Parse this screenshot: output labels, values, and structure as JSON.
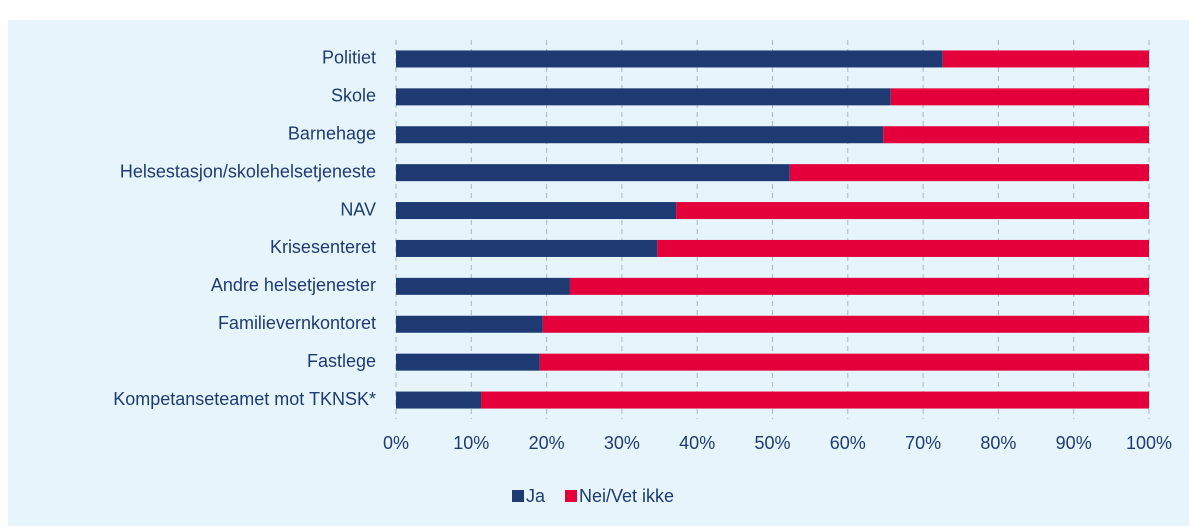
{
  "chart_data": {
    "type": "stacked-barh",
    "categories": [
      "Politiet",
      "Skole",
      "Barnehage",
      "Helsestasjon/skolehelsetjeneste",
      "NAV",
      "Krisesenteret",
      "Andre helsetjenester",
      "Familievernkontoret",
      "Fastlege",
      "Kompetanseteamet mot TKNSK*"
    ],
    "series": [
      {
        "name": "Ja",
        "color": "#1f3a73",
        "values": [
          72.6,
          65.7,
          64.7,
          52.3,
          37.2,
          34.7,
          23.1,
          19.5,
          19.1,
          11.3
        ]
      },
      {
        "name": "Nei/Vet ikke",
        "color": "#e4003a",
        "values": [
          27.4,
          34.3,
          35.3,
          47.7,
          62.8,
          65.3,
          76.9,
          80.5,
          80.9,
          88.7
        ]
      }
    ],
    "xlim": [
      0,
      100
    ],
    "xticks": [
      {
        "value": 0,
        "label": "0%"
      },
      {
        "value": 10,
        "label": "10%"
      },
      {
        "value": 20,
        "label": "20%"
      },
      {
        "value": 30,
        "label": "30%"
      },
      {
        "value": 40,
        "label": "40%"
      },
      {
        "value": 50,
        "label": "50%"
      },
      {
        "value": 60,
        "label": "60%"
      },
      {
        "value": 70,
        "label": "70%"
      },
      {
        "value": 80,
        "label": "80%"
      },
      {
        "value": 90,
        "label": "90%"
      },
      {
        "value": 100,
        "label": "100%"
      }
    ],
    "grid": true,
    "legend": "bottom"
  }
}
